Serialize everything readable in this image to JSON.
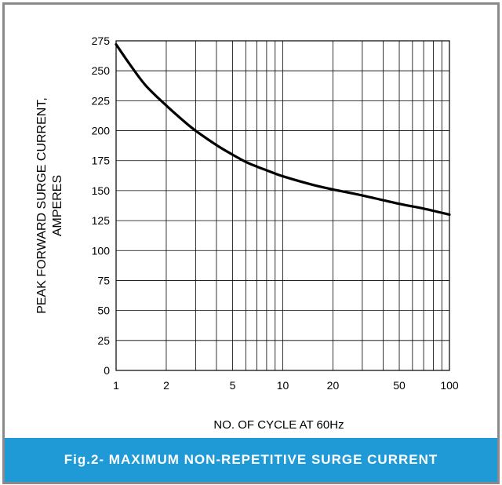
{
  "chart_data": {
    "type": "line",
    "title": "",
    "xlabel": "NO. OF CYCLE AT 60Hz",
    "ylabel": "PEAK FORWARD SURGE CURRENT,",
    "ylabel2": "AMPERES",
    "xscale": "log",
    "xlim": [
      1,
      100
    ],
    "ylim": [
      0,
      275
    ],
    "xticks": [
      1,
      2,
      5,
      10,
      20,
      50,
      100
    ],
    "yticks": [
      0,
      25,
      50,
      75,
      100,
      125,
      150,
      175,
      200,
      225,
      250,
      275
    ],
    "grid": true,
    "series": [
      {
        "x": [
          1,
          1.2,
          1.5,
          2,
          2.5,
          3,
          4,
          5,
          6,
          7,
          8,
          10,
          15,
          20,
          30,
          50,
          70,
          100
        ],
        "y": [
          272,
          256,
          238,
          221,
          209,
          200,
          188,
          180,
          174,
          170,
          167,
          162,
          155,
          151,
          146,
          139,
          135,
          130
        ]
      }
    ]
  },
  "caption": "Fig.2- MAXIMUM NON-REPETITIVE SURGE CURRENT",
  "colors": {
    "caption_bg": "#1f9ad6",
    "border": "#8a8a8a",
    "curve": "#000000"
  }
}
